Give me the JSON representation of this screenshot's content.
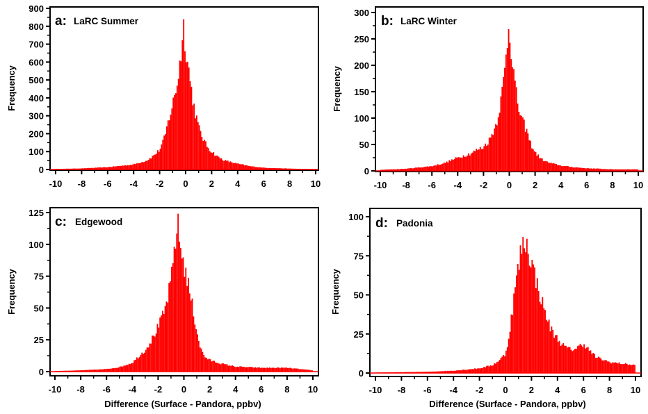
{
  "chart_data": [
    {
      "type": "bar",
      "panel_letter": "a:",
      "title": "LaRC Summer",
      "xlabel": "",
      "ylabel": "Frequency",
      "xlim": [
        -10,
        10
      ],
      "ylim": [
        0,
        900
      ],
      "xticks": [
        -10,
        -8,
        -6,
        -4,
        -2,
        0,
        2,
        4,
        6,
        8,
        10
      ],
      "yticks": [
        0,
        100,
        200,
        300,
        400,
        500,
        600,
        700,
        800,
        900
      ],
      "bin_width": 0.1,
      "color": "#ff0000",
      "profile": [
        [
          -10,
          3
        ],
        [
          -8,
          6
        ],
        [
          -6,
          13
        ],
        [
          -4,
          28
        ],
        [
          -3,
          50
        ],
        [
          -2.5,
          75
        ],
        [
          -2,
          110
        ],
        [
          -1.6,
          180
        ],
        [
          -1.3,
          280
        ],
        [
          -1,
          360
        ],
        [
          -0.8,
          430
        ],
        [
          -0.6,
          500
        ],
        [
          -0.4,
          620
        ],
        [
          -0.25,
          730
        ],
        [
          -0.15,
          800
        ],
        [
          0,
          700
        ],
        [
          0.2,
          580
        ],
        [
          0.4,
          470
        ],
        [
          0.6,
          370
        ],
        [
          0.8,
          300
        ],
        [
          1,
          235
        ],
        [
          1.3,
          180
        ],
        [
          1.6,
          135
        ],
        [
          2,
          100
        ],
        [
          2.5,
          70
        ],
        [
          3,
          50
        ],
        [
          4,
          32
        ],
        [
          5,
          18
        ],
        [
          6,
          10
        ],
        [
          8,
          5
        ],
        [
          10,
          2
        ]
      ]
    },
    {
      "type": "bar",
      "panel_letter": "b:",
      "title": "LaRC Winter",
      "xlabel": "",
      "ylabel": "Frequency",
      "xlim": [
        -10,
        10
      ],
      "ylim": [
        0,
        300
      ],
      "xticks": [
        -10,
        -8,
        -6,
        -4,
        -2,
        0,
        2,
        4,
        6,
        8,
        10
      ],
      "yticks": [
        0,
        50,
        100,
        150,
        200,
        250,
        300
      ],
      "bin_width": 0.1,
      "color": "#ff0000",
      "profile": [
        [
          -10,
          2
        ],
        [
          -8,
          4
        ],
        [
          -6,
          9
        ],
        [
          -5,
          15
        ],
        [
          -4,
          25
        ],
        [
          -3,
          33
        ],
        [
          -2.5,
          40
        ],
        [
          -2,
          45
        ],
        [
          -1.5,
          60
        ],
        [
          -1,
          90
        ],
        [
          -0.6,
          140
        ],
        [
          -0.3,
          200
        ],
        [
          -0.1,
          265
        ],
        [
          0,
          280
        ],
        [
          0.2,
          220
        ],
        [
          0.5,
          150
        ],
        [
          0.8,
          110
        ],
        [
          1,
          95
        ],
        [
          1.3,
          80
        ],
        [
          1.6,
          55
        ],
        [
          2,
          35
        ],
        [
          2.5,
          22
        ],
        [
          3,
          16
        ],
        [
          4,
          10
        ],
        [
          5,
          7
        ],
        [
          6,
          5
        ],
        [
          8,
          3
        ],
        [
          10,
          3
        ]
      ]
    },
    {
      "type": "bar",
      "panel_letter": "c:",
      "title": "Edgewood",
      "xlabel": "Difference (Surface - Pandora, ppbv)",
      "ylabel": "Frequency",
      "xlim": [
        -10,
        10
      ],
      "ylim": [
        0,
        125
      ],
      "xticks": [
        -10,
        -8,
        -6,
        -4,
        -2,
        0,
        2,
        4,
        6,
        8,
        10
      ],
      "yticks": [
        0,
        25,
        50,
        75,
        100,
        125
      ],
      "bin_width": 0.1,
      "color": "#ff0000",
      "profile": [
        [
          -10,
          0.5
        ],
        [
          -8,
          1
        ],
        [
          -6,
          2
        ],
        [
          -5,
          3.5
        ],
        [
          -4,
          7
        ],
        [
          -3,
          17
        ],
        [
          -2.5,
          25
        ],
        [
          -2,
          35
        ],
        [
          -1.5,
          47
        ],
        [
          -1,
          70
        ],
        [
          -0.7,
          100
        ],
        [
          -0.5,
          117
        ],
        [
          -0.3,
          100
        ],
        [
          0,
          85
        ],
        [
          0.3,
          70
        ],
        [
          0.6,
          55
        ],
        [
          1,
          32
        ],
        [
          1.3,
          18
        ],
        [
          1.6,
          12
        ],
        [
          2,
          9
        ],
        [
          3,
          6
        ],
        [
          4,
          4
        ],
        [
          6,
          3
        ],
        [
          8,
          3
        ],
        [
          10,
          1
        ]
      ]
    },
    {
      "type": "bar",
      "panel_letter": "d:",
      "title": "Padonia",
      "xlabel": "Difference (Surface - Pandora, ppbv)",
      "ylabel": "Frequency",
      "xlim": [
        -10,
        10
      ],
      "ylim": [
        0,
        100
      ],
      "xticks": [
        -10,
        -8,
        -6,
        -4,
        -2,
        0,
        2,
        4,
        6,
        8,
        10
      ],
      "yticks": [
        0,
        25,
        50,
        75,
        100
      ],
      "bin_width": 0.1,
      "color": "#ff0000",
      "profile": [
        [
          -10,
          0.3
        ],
        [
          -6,
          0.8
        ],
        [
          -4,
          1.5
        ],
        [
          -2,
          3
        ],
        [
          -1,
          5
        ],
        [
          -0.5,
          8
        ],
        [
          0,
          12
        ],
        [
          0.3,
          25
        ],
        [
          0.6,
          45
        ],
        [
          0.9,
          63
        ],
        [
          1.2,
          78
        ],
        [
          1.5,
          85
        ],
        [
          1.8,
          78
        ],
        [
          2.1,
          68
        ],
        [
          2.5,
          55
        ],
        [
          3,
          40
        ],
        [
          3.5,
          28
        ],
        [
          4,
          22
        ],
        [
          4.5,
          17
        ],
        [
          5,
          15
        ],
        [
          5.5,
          16
        ],
        [
          6,
          19
        ],
        [
          6.5,
          14
        ],
        [
          7,
          10
        ],
        [
          8,
          7
        ],
        [
          9,
          6
        ],
        [
          10,
          5
        ]
      ]
    }
  ]
}
